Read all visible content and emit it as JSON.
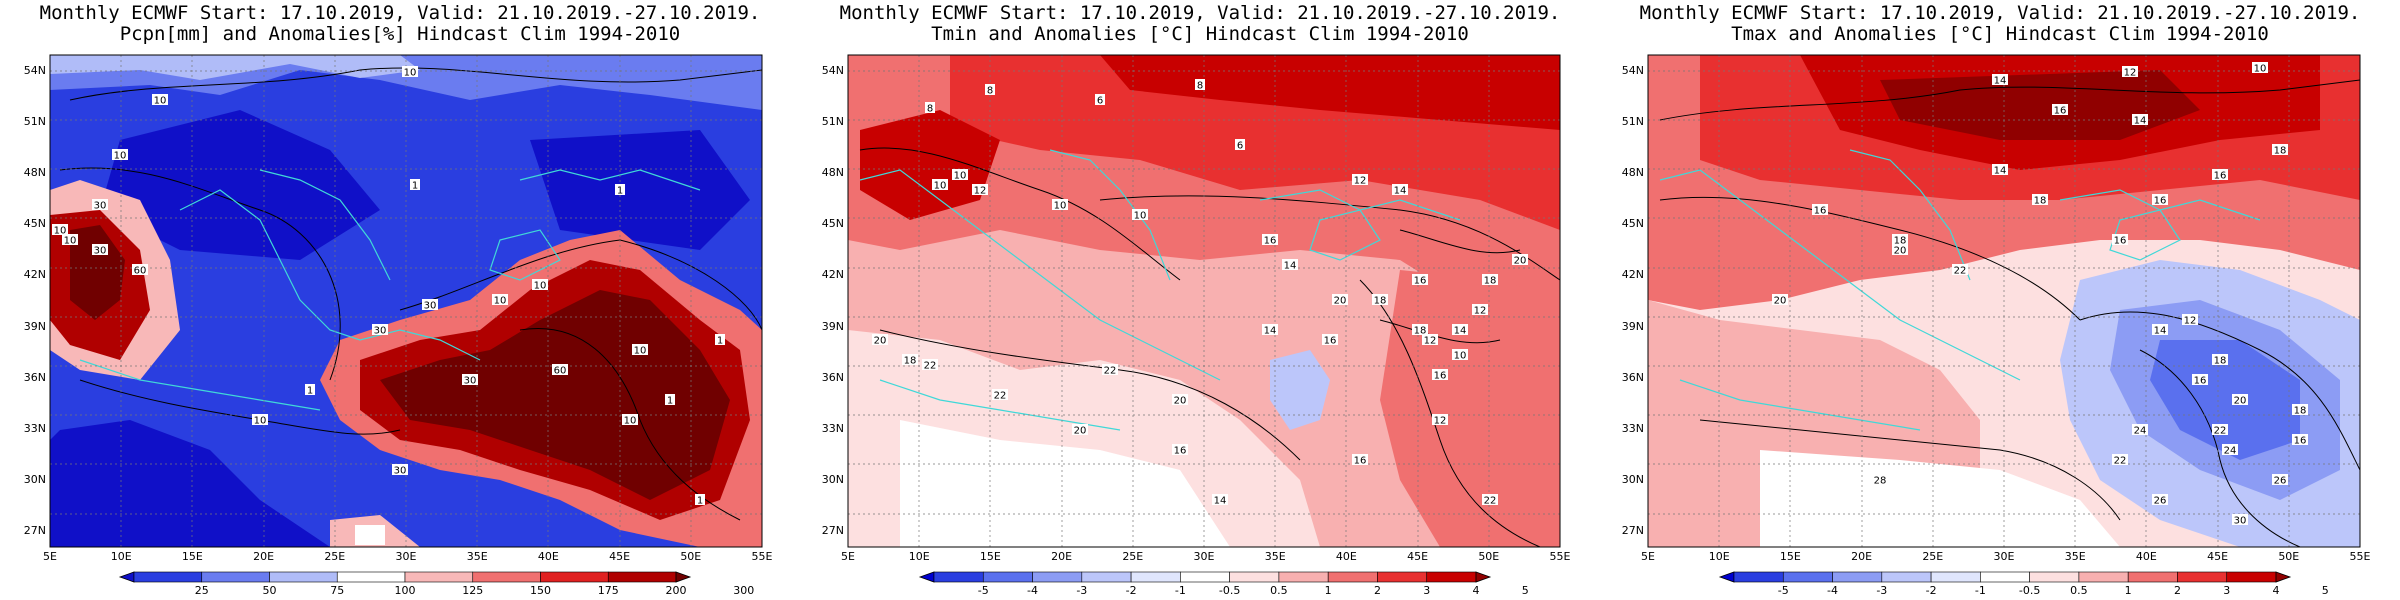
{
  "panels": [
    {
      "id": "precip",
      "title_line1": "Monthly ECMWF Start: 17.10.2019, Valid: 21.10.2019.-27.10.2019.",
      "title_line2": "Pcpn[mm] and Anomalies[%] Hindcast Clim 1994-2010",
      "colorbar_labels": [
        "25",
        "50",
        "75",
        "100",
        "125",
        "150",
        "175",
        "200",
        "300"
      ],
      "colorbar_colors": [
        "#1010c8",
        "#2a3ee0",
        "#6a7cf0",
        "#b0bcf8",
        "#ffffff",
        "#f8b8b8",
        "#f07070",
        "#e02020",
        "#b00000",
        "#700000"
      ],
      "contour_labels": [
        "10",
        "10",
        "10",
        "1",
        "1",
        "30",
        "10",
        "30",
        "60",
        "10",
        "30",
        "30",
        "10",
        "10",
        "30",
        "60",
        "10",
        "1",
        "1",
        "30",
        "1",
        "10",
        "10",
        "1"
      ]
    },
    {
      "id": "tmin",
      "title_line1": "Monthly ECMWF Start: 17.10.2019, Valid: 21.10.2019.-27.10.2019.",
      "title_line2": "Tmin and Anomalies [°C] Hindcast Clim 1994-2010",
      "colorbar_labels": [
        "-5",
        "-4",
        "-3",
        "-2",
        "-1",
        "-0.5",
        "0.5",
        "1",
        "2",
        "3",
        "4",
        "5"
      ],
      "colorbar_colors": [
        "#0000d0",
        "#2a3ee0",
        "#5a70ee",
        "#8c9cf4",
        "#bcc6fa",
        "#e0e6fd",
        "#ffffff",
        "#fde0e0",
        "#f8b0b0",
        "#f07070",
        "#e83030",
        "#c80000",
        "#900000"
      ],
      "contour_labels": [
        "8",
        "8",
        "6",
        "10",
        "10",
        "12",
        "10",
        "10",
        "8",
        "6",
        "16",
        "14",
        "12",
        "14",
        "18",
        "16",
        "20",
        "12",
        "16",
        "14",
        "12",
        "10",
        "18",
        "20",
        "22",
        "22",
        "20",
        "16",
        "14",
        "16",
        "18",
        "22",
        "12",
        "20",
        "22",
        "14",
        "16",
        "18",
        "20"
      ]
    },
    {
      "id": "tmax",
      "title_line1": "Monthly ECMWF Start: 17.10.2019, Valid: 21.10.2019.-27.10.2019.",
      "title_line2": "Tmax and Anomalies [°C] Hindcast Clim 1994-2010",
      "colorbar_labels": [
        "-5",
        "-4",
        "-3",
        "-2",
        "-1",
        "-0.5",
        "0.5",
        "1",
        "2",
        "3",
        "4",
        "5"
      ],
      "colorbar_colors": [
        "#0000d0",
        "#2a3ee0",
        "#5a70ee",
        "#8c9cf4",
        "#bcc6fa",
        "#e0e6fd",
        "#ffffff",
        "#fde0e0",
        "#f8b0b0",
        "#f07070",
        "#e83030",
        "#c80000",
        "#900000"
      ],
      "contour_labels": [
        "12",
        "10",
        "14",
        "16",
        "14",
        "16",
        "14",
        "16",
        "18",
        "16",
        "20",
        "18",
        "16",
        "18",
        "22",
        "20",
        "14",
        "12",
        "16",
        "18",
        "20",
        "22",
        "24",
        "26",
        "24",
        "22",
        "26",
        "28",
        "30",
        "18",
        "16"
      ]
    }
  ],
  "lat_labels": [
    "54N",
    "51N",
    "48N",
    "45N",
    "42N",
    "39N",
    "36N",
    "33N",
    "30N",
    "27N"
  ],
  "lon_labels": [
    "5E",
    "10E",
    "15E",
    "20E",
    "25E",
    "30E",
    "35E",
    "40E",
    "45E",
    "50E",
    "55E"
  ]
}
